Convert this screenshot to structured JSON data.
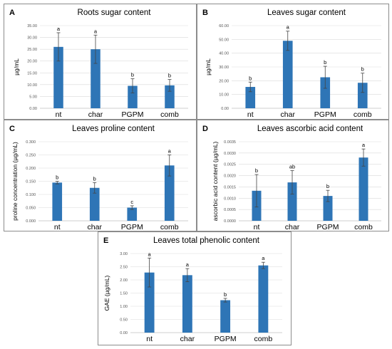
{
  "chart_data": [
    {
      "type": "bar",
      "panel_letter": "A",
      "title": "Roots sugar content",
      "ylabel": "µg/mL",
      "categories": [
        "nt",
        "char",
        "PGPM",
        "comb"
      ],
      "values": [
        26.0,
        25.0,
        9.5,
        9.7
      ],
      "errors": [
        6.0,
        6.0,
        3.0,
        2.5
      ],
      "significance": [
        "a",
        "a",
        "b",
        "b"
      ],
      "ylim": [
        0,
        35
      ],
      "yticks": [
        0,
        5,
        10,
        15,
        20,
        25,
        30,
        35
      ],
      "ytick_labels": [
        "0.00",
        "5.00",
        "10.00",
        "15.00",
        "20.00",
        "25.00",
        "30.00",
        "35.00"
      ],
      "grid": true,
      "color": "#2e75b6"
    },
    {
      "type": "bar",
      "panel_letter": "B",
      "title": "Leaves sugar content",
      "ylabel": "µg/mL",
      "categories": [
        "nt",
        "char",
        "PGPM",
        "comb"
      ],
      "values": [
        15.5,
        49.0,
        22.5,
        18.5
      ],
      "errors": [
        3.5,
        7.0,
        8.0,
        7.0
      ],
      "significance": [
        "b",
        "a",
        "b",
        "b"
      ],
      "ylim": [
        0,
        60
      ],
      "yticks": [
        0,
        10,
        20,
        30,
        40,
        50,
        60
      ],
      "ytick_labels": [
        "0.00",
        "10.00",
        "20.00",
        "30.00",
        "40.00",
        "50.00",
        "60.00"
      ],
      "grid": true,
      "color": "#2e75b6"
    },
    {
      "type": "bar",
      "panel_letter": "C",
      "title": "Leaves proline content",
      "ylabel": "proline concentration (µg/mL)",
      "categories": [
        "nt",
        "char",
        "PGPM",
        "comb"
      ],
      "values": [
        0.145,
        0.125,
        0.05,
        0.21
      ],
      "errors": [
        0.005,
        0.02,
        0.007,
        0.04
      ],
      "significance": [
        "b",
        "b",
        "c",
        "a"
      ],
      "ylim": [
        0,
        0.3
      ],
      "yticks": [
        0,
        0.05,
        0.1,
        0.15,
        0.2,
        0.25,
        0.3
      ],
      "ytick_labels": [
        "0.000",
        "0.050",
        "0.100",
        "0.150",
        "0.200",
        "0.250",
        "0.300"
      ],
      "grid": true,
      "color": "#2e75b6"
    },
    {
      "type": "bar",
      "panel_letter": "D",
      "title": "Leaves ascorbic acid content",
      "ylabel": "ascorbic acid content (µg/mL)",
      "categories": [
        "nt",
        "char",
        "PGPM",
        "comb"
      ],
      "values": [
        0.00133,
        0.0017,
        0.0011,
        0.0028
      ],
      "errors": [
        0.00072,
        0.00052,
        0.00025,
        0.00038
      ],
      "significance": [
        "b",
        "ab",
        "b",
        "a"
      ],
      "ylim": [
        0,
        0.0035
      ],
      "yticks": [
        0,
        0.0005,
        0.001,
        0.0015,
        0.002,
        0.0025,
        0.003,
        0.0035
      ],
      "ytick_labels": [
        "0.0000",
        "0.0005",
        "0.0010",
        "0.0015",
        "0.0020",
        "0.0025",
        "0.0030",
        "0.0035"
      ],
      "grid": true,
      "color": "#2e75b6"
    },
    {
      "type": "bar",
      "panel_letter": "E",
      "title": "Leaves total phenolic content",
      "ylabel": "GAE (µg/mL)",
      "categories": [
        "nt",
        "char",
        "PGPM",
        "comb"
      ],
      "values": [
        2.28,
        2.18,
        1.23,
        2.55
      ],
      "errors": [
        0.55,
        0.25,
        0.07,
        0.12
      ],
      "significance": [
        "a",
        "a",
        "b",
        "a"
      ],
      "ylim": [
        0,
        3.0
      ],
      "yticks": [
        0,
        0.5,
        1.0,
        1.5,
        2.0,
        2.5,
        3.0
      ],
      "ytick_labels": [
        "0.00",
        "0.50",
        "1.00",
        "1.50",
        "2.00",
        "2.50",
        "3.00"
      ],
      "grid": true,
      "color": "#2e75b6"
    }
  ]
}
